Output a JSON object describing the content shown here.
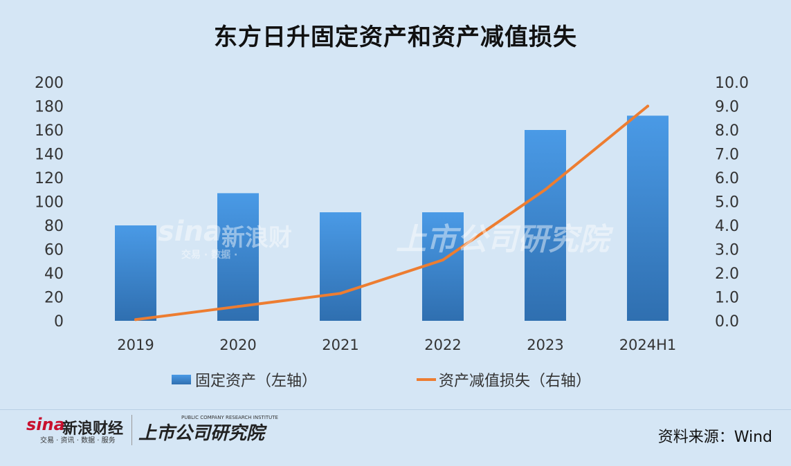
{
  "chart_data": {
    "type": "bar",
    "title": "东方日升固定资产和资产减值损失",
    "categories": [
      "2019",
      "2020",
      "2021",
      "2022",
      "2023",
      "2024H1"
    ],
    "series": [
      {
        "name": "固定资产（左轴）",
        "type": "bar",
        "axis": "left",
        "values": [
          80,
          107,
          91,
          91,
          160,
          172
        ],
        "color": "#3f8fd8"
      },
      {
        "name": "资产减值损失（右轴）",
        "type": "line",
        "axis": "right",
        "values": [
          0.05,
          0.6,
          1.15,
          2.55,
          5.5,
          9.0
        ],
        "color": "#ed7d31"
      }
    ],
    "y_left": {
      "ylim": [
        0,
        200
      ],
      "ticks": [
        "0",
        "20",
        "40",
        "60",
        "80",
        "100",
        "120",
        "140",
        "160",
        "180",
        "200"
      ]
    },
    "y_right": {
      "ylim": [
        0,
        10
      ],
      "ticks": [
        "0.0",
        "1.0",
        "2.0",
        "3.0",
        "4.0",
        "5.0",
        "6.0",
        "7.0",
        "8.0",
        "9.0",
        "10.0"
      ]
    },
    "grid": false,
    "legend_position": "bottom"
  },
  "footer": {
    "sina_word": "sina",
    "sina_name": "新浪财经",
    "sina_sub": "交易 · 资讯 · 数据 · 服务",
    "institute_name": "上市公司研究院",
    "institute_en": "PUBLIC COMPANY RESEARCH INSTITUTE",
    "source": "资料来源：Wind"
  },
  "watermark": {
    "sina_word": "sina",
    "sina_name": "新浪财",
    "sina_sub": "交易 · 数据 ·",
    "institute_name": "上市公司研究院"
  },
  "colors": {
    "background": "#d5e6f5",
    "bar": "#3f8fd8",
    "line": "#ed7d31"
  }
}
